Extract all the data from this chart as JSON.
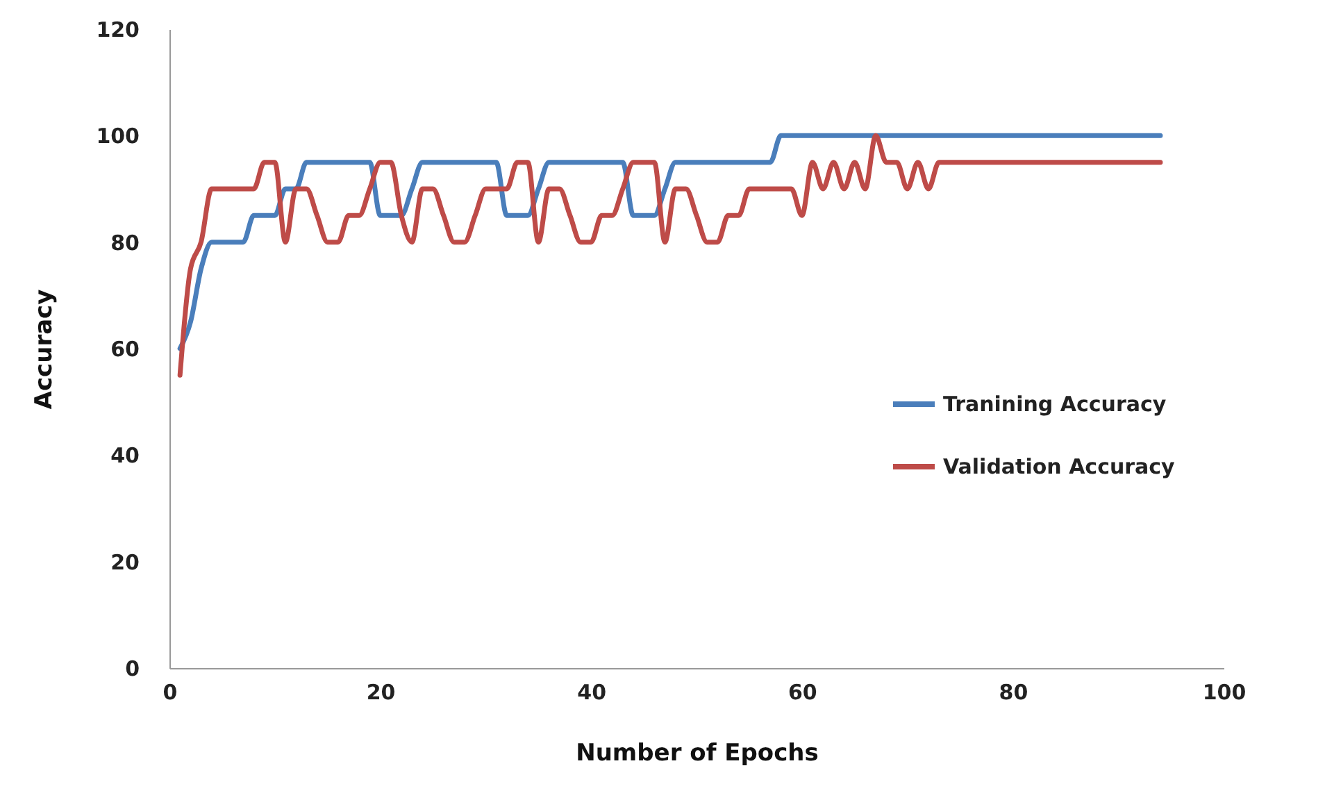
{
  "chart_data": {
    "type": "line",
    "xlabel": "Number of Epochs",
    "ylabel": "Accuracy",
    "xlim": [
      0,
      100
    ],
    "xticks": [
      0,
      20,
      40,
      60,
      80,
      100
    ],
    "ylim": [
      0,
      120
    ],
    "yticks": [
      0,
      20,
      40,
      60,
      80,
      100,
      120
    ],
    "grid": false,
    "legend": "right",
    "marker": "none",
    "line_style": "solid",
    "x": [
      1,
      2,
      3,
      4,
      5,
      6,
      7,
      8,
      9,
      10,
      11,
      12,
      13,
      14,
      15,
      16,
      17,
      18,
      19,
      20,
      21,
      22,
      23,
      24,
      25,
      26,
      27,
      28,
      29,
      30,
      31,
      32,
      33,
      34,
      35,
      36,
      37,
      38,
      39,
      40,
      41,
      42,
      43,
      44,
      45,
      46,
      47,
      48,
      49,
      50,
      51,
      52,
      53,
      54,
      55,
      56,
      57,
      58,
      59,
      60,
      61,
      62,
      63,
      64,
      65,
      66,
      67,
      68,
      69,
      70,
      71,
      72,
      73,
      74,
      75,
      76,
      77,
      78,
      79,
      80,
      81,
      82,
      83,
      84,
      85,
      86,
      87,
      88,
      89,
      90,
      91,
      92,
      93,
      94
    ],
    "series": [
      {
        "name": "Tranining Accuracy",
        "color": "#4a7ebb",
        "values": [
          60,
          65,
          75,
          80,
          80,
          80,
          80,
          85,
          85,
          85,
          90,
          90,
          95,
          95,
          95,
          95,
          95,
          95,
          95,
          85,
          85,
          85,
          90,
          95,
          95,
          95,
          95,
          95,
          95,
          95,
          95,
          85,
          85,
          85,
          90,
          95,
          95,
          95,
          95,
          95,
          95,
          95,
          95,
          85,
          85,
          85,
          90,
          95,
          95,
          95,
          95,
          95,
          95,
          95,
          95,
          95,
          95,
          100,
          100,
          100,
          100,
          100,
          100,
          100,
          100,
          100,
          100,
          100,
          100,
          100,
          100,
          100,
          100,
          100,
          100,
          100,
          100,
          100,
          100,
          100,
          100,
          100,
          100,
          100,
          100,
          100,
          100,
          100,
          100,
          100,
          100,
          100,
          100,
          100
        ]
      },
      {
        "name": "Validation Accuracy",
        "color": "#be4b48",
        "values": [
          55,
          75,
          80,
          90,
          90,
          90,
          90,
          90,
          95,
          95,
          80,
          90,
          90,
          85,
          80,
          80,
          85,
          85,
          90,
          95,
          95,
          85,
          80,
          90,
          90,
          85,
          80,
          80,
          85,
          90,
          90,
          90,
          95,
          95,
          80,
          90,
          90,
          85,
          80,
          80,
          85,
          85,
          90,
          95,
          95,
          95,
          80,
          90,
          90,
          85,
          80,
          80,
          85,
          85,
          90,
          90,
          90,
          90,
          90,
          85,
          95,
          90,
          95,
          90,
          95,
          90,
          100,
          95,
          95,
          90,
          95,
          90,
          95,
          95,
          95,
          95,
          95,
          95,
          95,
          95,
          95,
          95,
          95,
          95,
          95,
          95,
          95,
          95,
          95,
          95,
          95,
          95,
          95,
          95
        ]
      }
    ]
  }
}
